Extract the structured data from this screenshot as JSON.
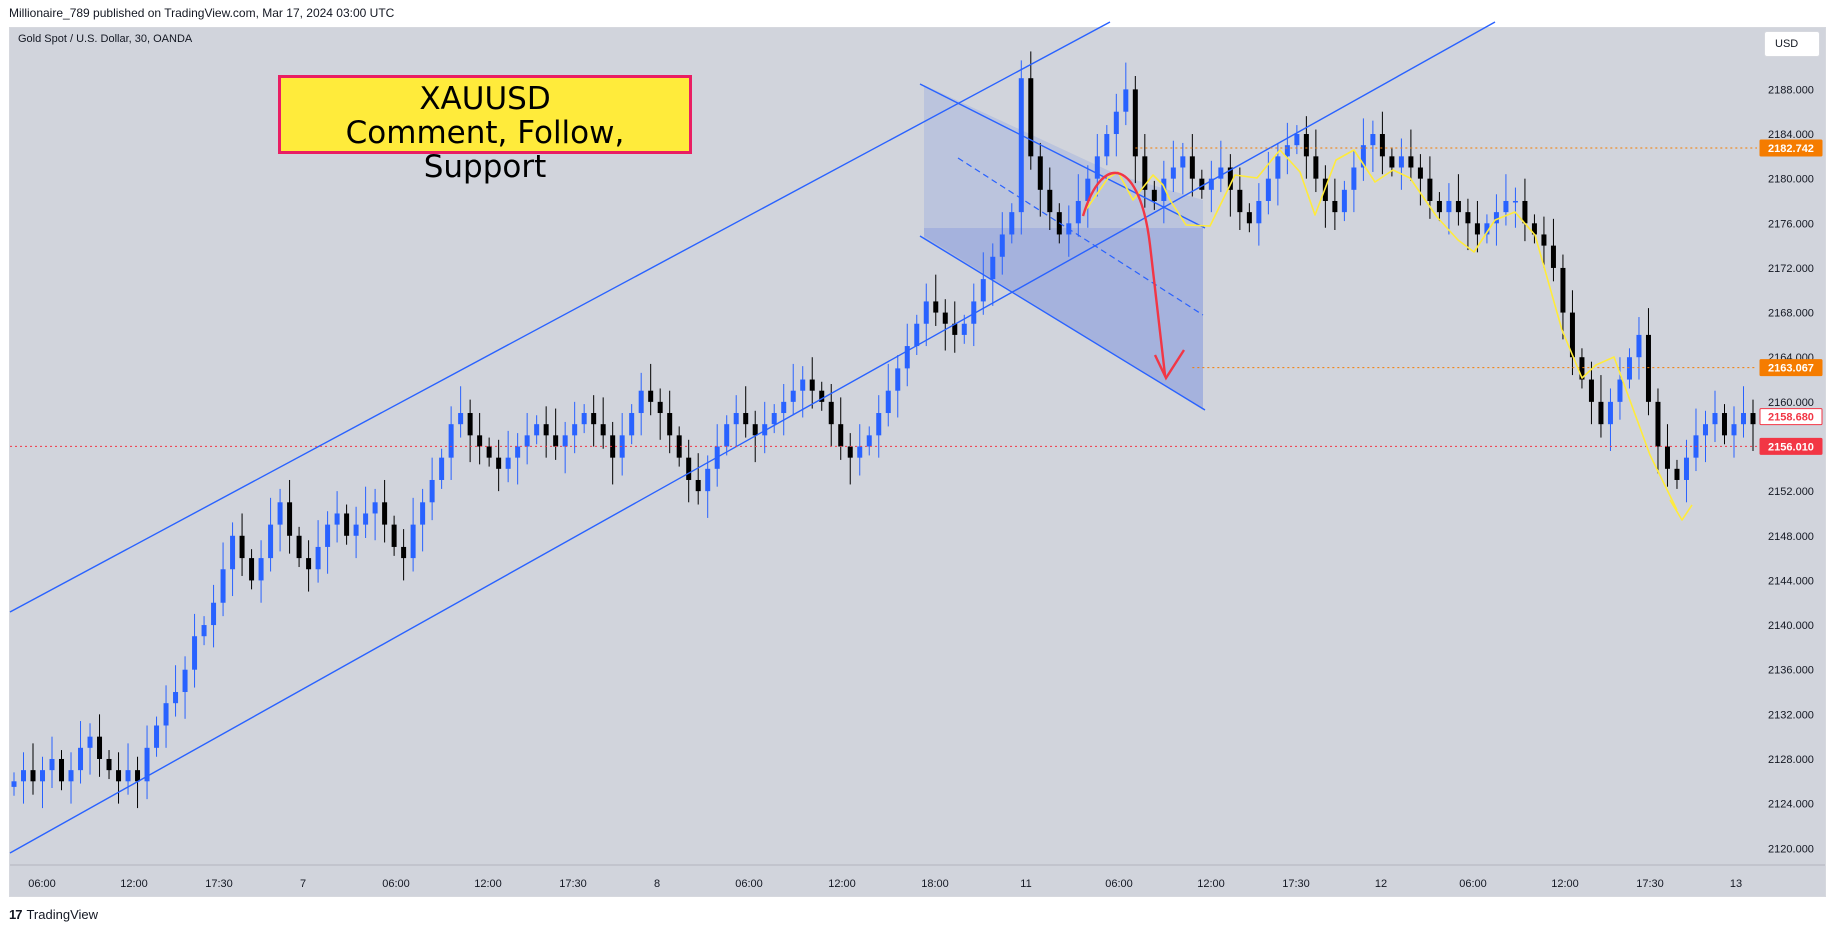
{
  "header": {
    "published": "Millionaire_789 published on TradingView.com, Mar 17, 2024 03:00 UTC"
  },
  "symbol": {
    "title": "Gold Spot / U.S. Dollar, 30, OANDA",
    "currency": "USD"
  },
  "banner": {
    "line1": "XAUUSD",
    "line2": "Comment, Follow, Support"
  },
  "footer": {
    "brand": "TradingView",
    "logo": "17"
  },
  "colors": {
    "bull": "#2962ff",
    "bear": "#000000",
    "channel": "#2962ff",
    "background": "#d1d4dc",
    "orange_level": "#f57c00",
    "red_level": "#f23645",
    "forecast_arrow": "#f23645",
    "path": "#ffeb3b"
  },
  "chart_data": {
    "type": "candlestick",
    "ylim": [
      2118.5,
      2193.5
    ],
    "y_ticks": [
      "2120.000",
      "2124.000",
      "2128.000",
      "2132.000",
      "2136.000",
      "2140.000",
      "2144.000",
      "2148.000",
      "2152.000",
      "2156.000",
      "2160.000",
      "2164.000",
      "2168.000",
      "2172.000",
      "2176.000",
      "2180.000",
      "2184.000",
      "2188.000"
    ],
    "x_ticks": [
      "06:00",
      "12:00",
      "17:30",
      "7",
      "06:00",
      "12:00",
      "17:30",
      "8",
      "06:00",
      "12:00",
      "18:00",
      "11",
      "06:00",
      "12:00",
      "17:30",
      "12",
      "06:00",
      "12:00",
      "17:30",
      "13"
    ],
    "price_labels": [
      {
        "text": "2182.742",
        "value": 2182.742,
        "color": "#f57c00"
      },
      {
        "text": "2163.067",
        "value": 2163.067,
        "color": "#f57c00"
      },
      {
        "text": "2158.680",
        "value": 2158.68,
        "color": "#f23645",
        "style": "outline"
      },
      {
        "text": "2156.010",
        "value": 2156.01,
        "color": "#f23645"
      }
    ],
    "horizontal_levels": [
      {
        "value": 2182.742,
        "color": "#f57c00",
        "style": "dotted",
        "from_bar": 118
      },
      {
        "value": 2163.067,
        "color": "#f57c00",
        "style": "dotted",
        "from_bar": 124
      },
      {
        "value": 2156.01,
        "color": "#f23645",
        "style": "dotted",
        "from_bar": 0
      }
    ],
    "candles_close": [
      2126,
      2127,
      2126,
      2127,
      2128,
      2126,
      2127,
      2129,
      2130,
      2128,
      2127,
      2126,
      2127,
      2126,
      2129,
      2131,
      2133,
      2134,
      2136,
      2139,
      2140,
      2142,
      2145,
      2148,
      2146,
      2144,
      2146,
      2149,
      2151,
      2148,
      2146,
      2145,
      2147,
      2149,
      2150,
      2148,
      2149,
      2150,
      2151,
      2149,
      2147,
      2146,
      2149,
      2151,
      2153,
      2155,
      2158,
      2159,
      2157,
      2156,
      2155,
      2154,
      2155,
      2156,
      2157,
      2158,
      2157,
      2156,
      2157,
      2158,
      2159,
      2158,
      2157,
      2155,
      2157,
      2159,
      2161,
      2160,
      2159,
      2157,
      2155,
      2153,
      2152,
      2154,
      2156,
      2158,
      2159,
      2158,
      2157,
      2158,
      2159,
      2160,
      2161,
      2162,
      2161,
      2160,
      2158,
      2156,
      2155,
      2156,
      2157,
      2159,
      2161,
      2163,
      2165,
      2167,
      2169,
      2168,
      2167,
      2166,
      2167,
      2169,
      2171,
      2173,
      2175,
      2177,
      2189,
      2182,
      2179,
      2177,
      2175,
      2176,
      2178,
      2180,
      2182,
      2184,
      2186,
      2188,
      2182,
      2179,
      2178,
      2180,
      2181,
      2182,
      2180,
      2179,
      2180,
      2181,
      2179,
      2177,
      2176,
      2178,
      2180,
      2182,
      2183,
      2184,
      2182,
      2180,
      2178,
      2177,
      2179,
      2181,
      2183,
      2184,
      2182,
      2181,
      2182,
      2181,
      2180,
      2178,
      2177,
      2178,
      2177,
      2176,
      2175,
      2176,
      2177,
      2178,
      2178,
      2176,
      2175,
      2174,
      2172,
      2168,
      2164,
      2162,
      2160,
      2158,
      2160,
      2162,
      2164,
      2166,
      2160,
      2156,
      2154,
      2153,
      2155,
      2157,
      2158,
      2159,
      2157,
      2158,
      2159,
      2158
    ],
    "channels": [
      {
        "name": "ascending_upper",
        "p1": [
          "bar0",
          2146
        ],
        "p2": [
          "bar~120",
          2194
        ]
      },
      {
        "name": "ascending_lower",
        "p1": [
          "bar0",
          2119.5
        ],
        "p2": [
          "bar~150",
          2194
        ]
      },
      {
        "name": "descending_flag",
        "upper": [
          2189,
          2178.5
        ],
        "lower": [
          2175.5,
          2159.5
        ]
      }
    ]
  }
}
